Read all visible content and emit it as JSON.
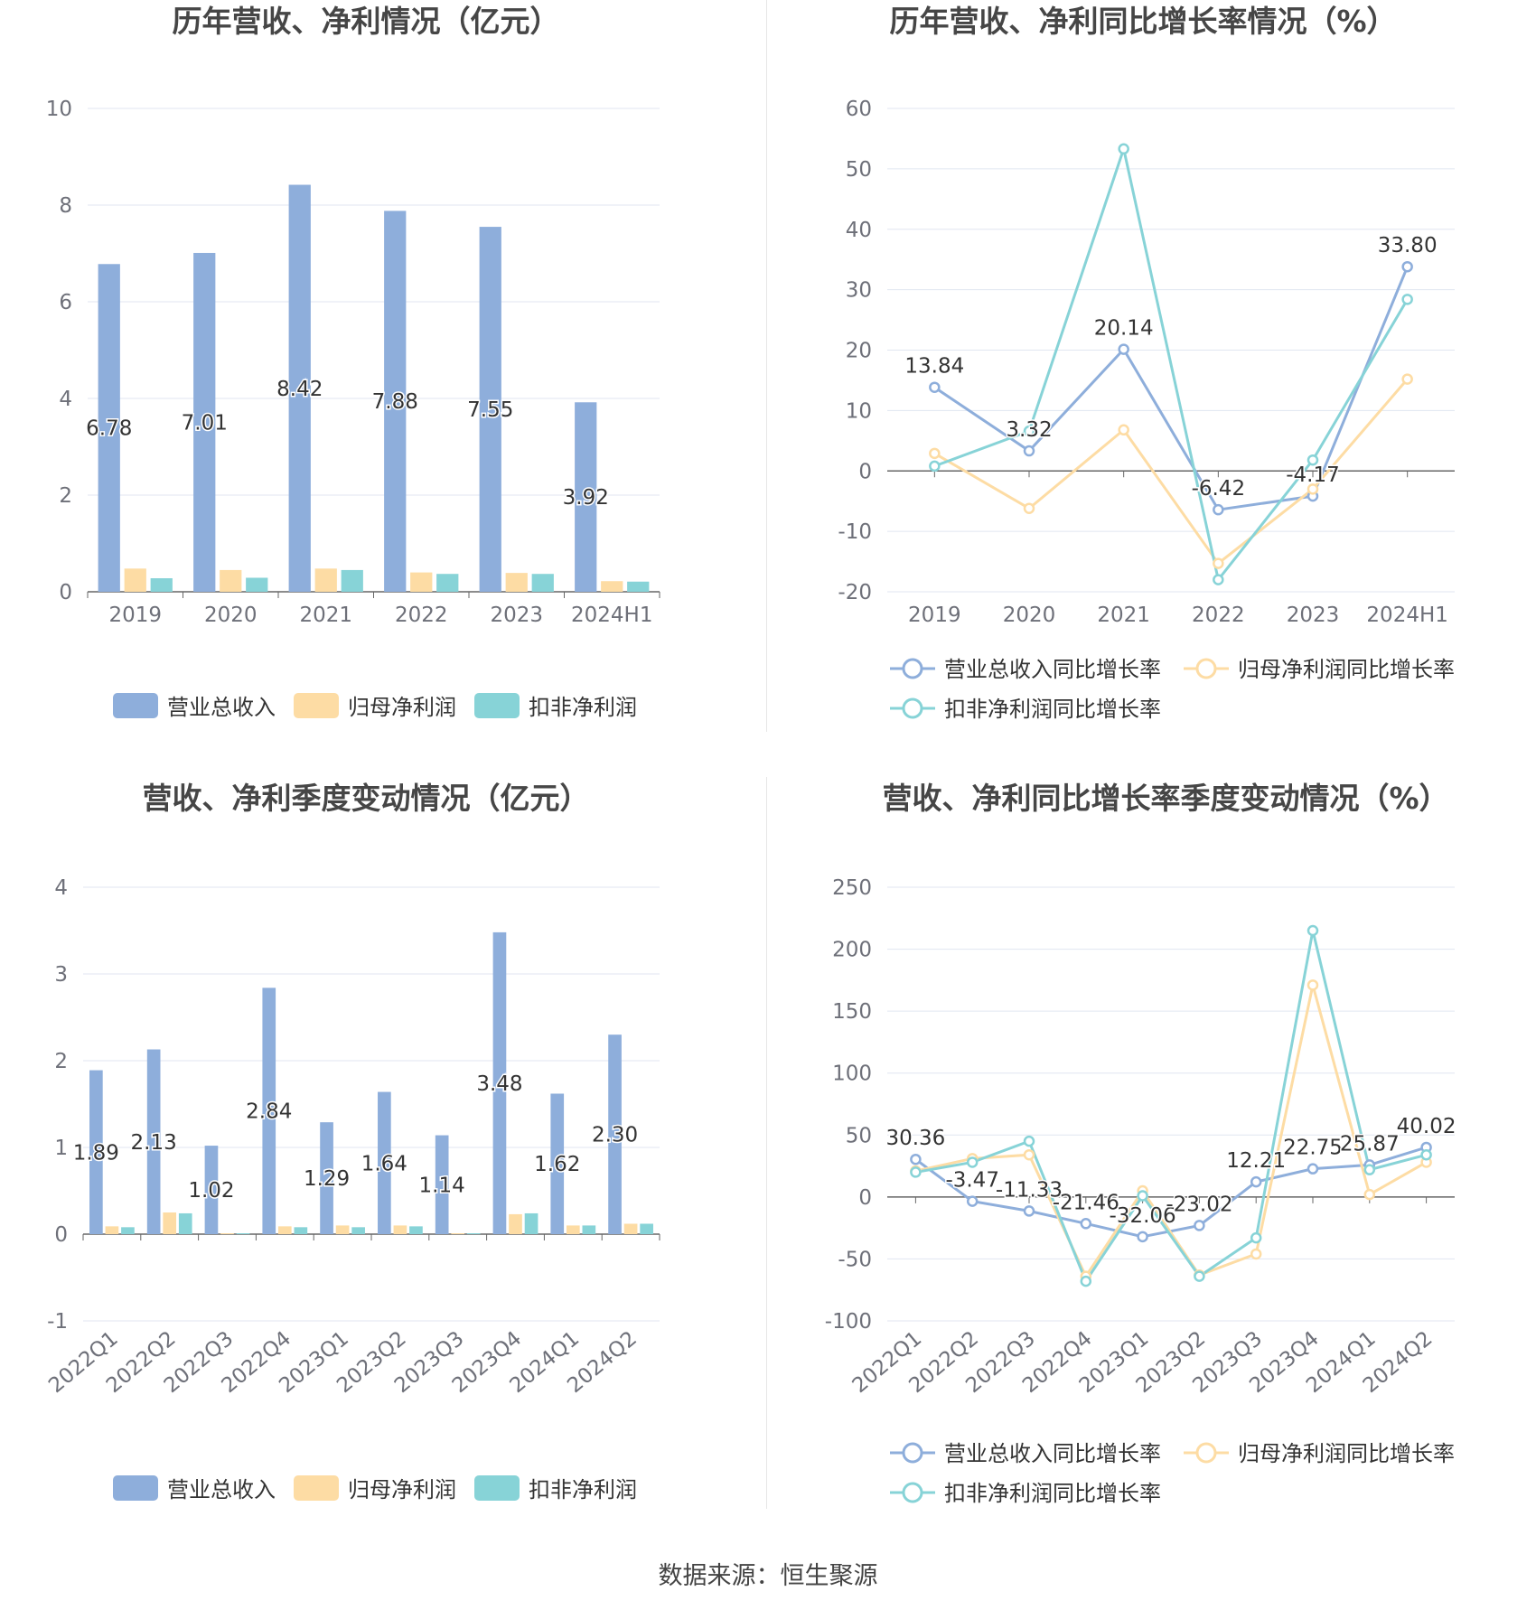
{
  "source": "数据来源：恒生聚源",
  "colors": {
    "revenue": "#8eaedb",
    "net_profit": "#fddca4",
    "deducted_profit": "#87d3d7"
  },
  "chart_data": [
    {
      "type": "bar",
      "title": "历年营收、净利情况（亿元）",
      "categories": [
        "2019",
        "2020",
        "2021",
        "2022",
        "2023",
        "2024H1"
      ],
      "ylim": [
        0,
        10
      ],
      "yticks": [
        0,
        2,
        4,
        6,
        8,
        10
      ],
      "grid": true,
      "legend_position": "bottom",
      "series": [
        {
          "name": "营业总收入",
          "values": [
            6.78,
            7.01,
            8.42,
            7.88,
            7.55,
            3.92
          ],
          "labels": [
            "6.78",
            "7.01",
            "8.42",
            "7.88",
            "7.55",
            "3.92"
          ]
        },
        {
          "name": "归母净利润",
          "values": [
            0.48,
            0.45,
            0.48,
            0.4,
            0.39,
            0.22
          ]
        },
        {
          "name": "扣非净利润",
          "values": [
            0.28,
            0.29,
            0.45,
            0.37,
            0.37,
            0.21
          ]
        }
      ]
    },
    {
      "type": "line",
      "title": "历年营收、净利同比增长率情况（%）",
      "categories": [
        "2019",
        "2020",
        "2021",
        "2022",
        "2023",
        "2024H1"
      ],
      "ylim": [
        -20,
        60
      ],
      "yticks": [
        -20,
        -10,
        0,
        10,
        20,
        30,
        40,
        50,
        60
      ],
      "grid": true,
      "legend_position": "bottom",
      "series": [
        {
          "name": "营业总收入同比增长率",
          "values": [
            13.84,
            3.32,
            20.14,
            -6.42,
            -4.17,
            33.8
          ],
          "labels": [
            "13.84",
            "3.32",
            "20.14",
            "-6.42",
            "-4.17",
            "33.80"
          ]
        },
        {
          "name": "归母净利润同比增长率",
          "values": [
            2.9,
            -6.2,
            6.8,
            -15.3,
            -3.0,
            15.2
          ]
        },
        {
          "name": "扣非净利润同比增长率",
          "values": [
            0.8,
            6.6,
            53.3,
            -18.0,
            1.8,
            28.4
          ]
        }
      ]
    },
    {
      "type": "bar",
      "title": "营收、净利季度变动情况（亿元）",
      "categories": [
        "2022Q1",
        "2022Q2",
        "2022Q3",
        "2022Q4",
        "2023Q1",
        "2023Q2",
        "2023Q3",
        "2023Q4",
        "2024Q1",
        "2024Q2"
      ],
      "ylim": [
        -1,
        4
      ],
      "yticks": [
        -1,
        0,
        1,
        2,
        3,
        4
      ],
      "grid": true,
      "legend_position": "bottom",
      "series": [
        {
          "name": "营业总收入",
          "values": [
            1.89,
            2.13,
            1.02,
            2.84,
            1.29,
            1.64,
            1.14,
            3.48,
            1.62,
            2.3
          ],
          "labels": [
            "1.89",
            "2.13",
            "1.02",
            "2.84",
            "1.29",
            "1.64",
            "1.14",
            "3.48",
            "1.62",
            "2.30"
          ]
        },
        {
          "name": "归母净利润",
          "values": [
            0.09,
            0.25,
            0.01,
            0.09,
            0.1,
            0.1,
            0.01,
            0.23,
            0.1,
            0.12
          ]
        },
        {
          "name": "扣非净利润",
          "values": [
            0.08,
            0.24,
            0.01,
            0.08,
            0.08,
            0.09,
            0.01,
            0.24,
            0.1,
            0.12
          ]
        }
      ]
    },
    {
      "type": "line",
      "title": "营收、净利同比增长率季度变动情况（%）",
      "categories": [
        "2022Q1",
        "2022Q2",
        "2022Q3",
        "2022Q4",
        "2023Q1",
        "2023Q2",
        "2023Q3",
        "2023Q4",
        "2024Q1",
        "2024Q2"
      ],
      "ylim": [
        -100,
        250
      ],
      "yticks": [
        -100,
        -50,
        0,
        50,
        100,
        150,
        200,
        250
      ],
      "grid": true,
      "legend_position": "bottom",
      "series": [
        {
          "name": "营业总收入同比增长率",
          "values": [
            30.36,
            -3.47,
            -11.33,
            -21.46,
            -32.06,
            -23.02,
            12.21,
            22.75,
            25.87,
            40.02
          ],
          "labels": [
            "30.36",
            "-3.47",
            "-11.33",
            "-21.46",
            "-32.06",
            "-23.02",
            "12.21",
            "22.75",
            "25.87",
            "40.02"
          ]
        },
        {
          "name": "归母净利润同比增长率",
          "values": [
            21,
            31,
            34,
            -64,
            5,
            -63,
            -46,
            171,
            2,
            28
          ]
        },
        {
          "name": "扣非净利润同比增长率",
          "values": [
            20,
            28,
            45,
            -68,
            1,
            -64,
            -33,
            215,
            22,
            34
          ]
        }
      ]
    }
  ]
}
